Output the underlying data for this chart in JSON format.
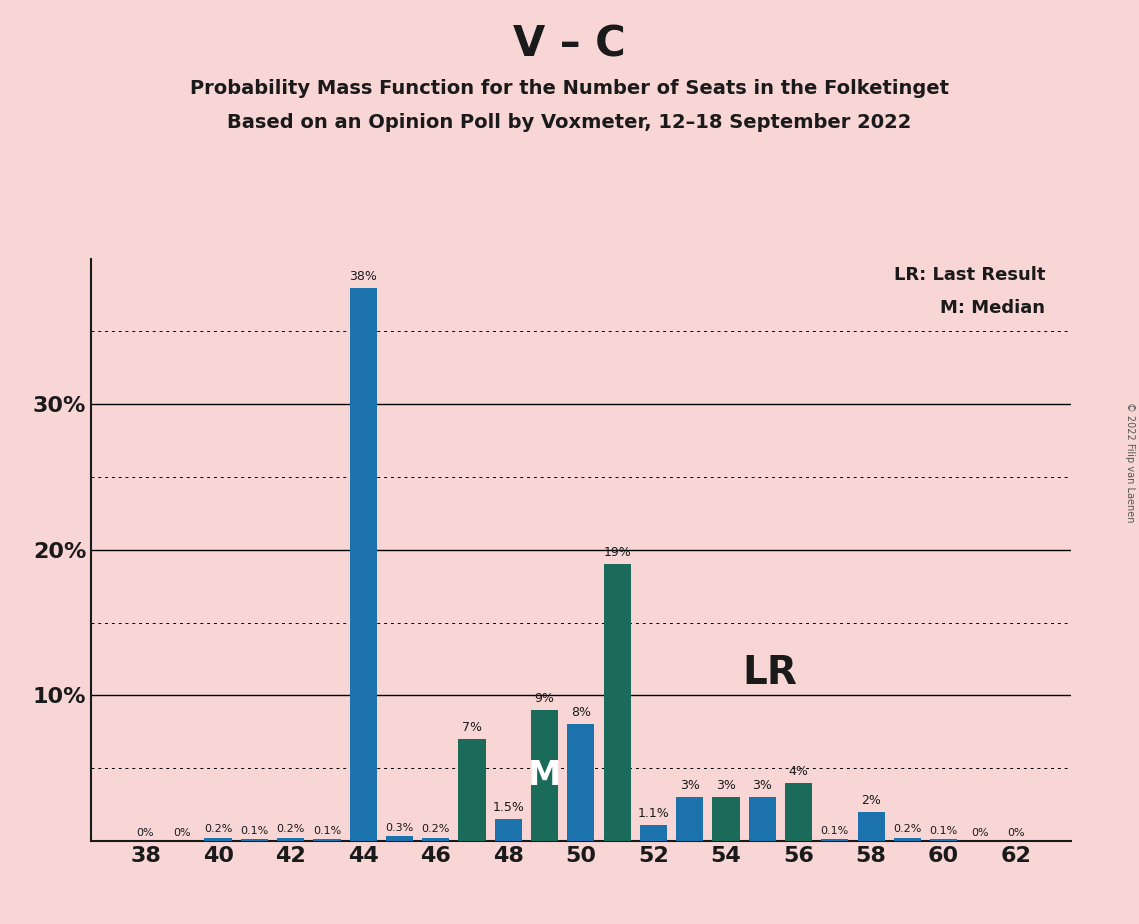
{
  "title_main": "V – C",
  "title_sub1": "Probability Mass Function for the Number of Seats in the Folketinget",
  "title_sub2": "Based on an Opinion Poll by Voxmeter, 12–18 September 2022",
  "copyright_text": "© 2022 Filip van Laenen",
  "seats": [
    38,
    39,
    40,
    41,
    42,
    43,
    44,
    45,
    46,
    47,
    48,
    49,
    50,
    51,
    52,
    53,
    54,
    55,
    56,
    57,
    58,
    59,
    60,
    61,
    62
  ],
  "values": [
    0.0,
    0.0,
    0.2,
    0.1,
    0.2,
    0.1,
    38.0,
    0.3,
    0.2,
    7.0,
    1.5,
    9.0,
    8.0,
    19.0,
    1.1,
    3.0,
    3.0,
    3.0,
    4.0,
    0.1,
    2.0,
    0.2,
    0.1,
    0.0,
    0.0
  ],
  "labels": [
    "0%",
    "0%",
    "0.2%",
    "0.1%",
    "0.2%",
    "0.1%",
    "38%",
    "0.3%",
    "0.2%",
    "7%",
    "1.5%",
    "9%",
    "8%",
    "19%",
    "1.1%",
    "3%",
    "3%",
    "3%",
    "4%",
    "0.1%",
    "2%",
    "0.2%",
    "0.1%",
    "0%",
    "0%"
  ],
  "bar_colors": [
    "#1B72AD",
    "#1B72AD",
    "#1B72AD",
    "#1B72AD",
    "#1B72AD",
    "#1B72AD",
    "#1B72AD",
    "#1B72AD",
    "#1B72AD",
    "#1A6B5A",
    "#1B72AD",
    "#1A6B5A",
    "#1B72AD",
    "#1A6B5A",
    "#1B72AD",
    "#1B72AD",
    "#1A6B5A",
    "#1B72AD",
    "#1A6B5A",
    "#1B72AD",
    "#1B72AD",
    "#1B72AD",
    "#1B72AD",
    "#1B72AD",
    "#1B72AD"
  ],
  "median_seat": 49,
  "background_color": "#F9D6D6",
  "ylim": [
    0,
    40
  ],
  "major_yticks": [
    10,
    20,
    30
  ],
  "major_ytick_labels": [
    "10%",
    "20%",
    "30%"
  ],
  "dotted_yticks": [
    5,
    15,
    25,
    35
  ],
  "bar_width": 0.75
}
